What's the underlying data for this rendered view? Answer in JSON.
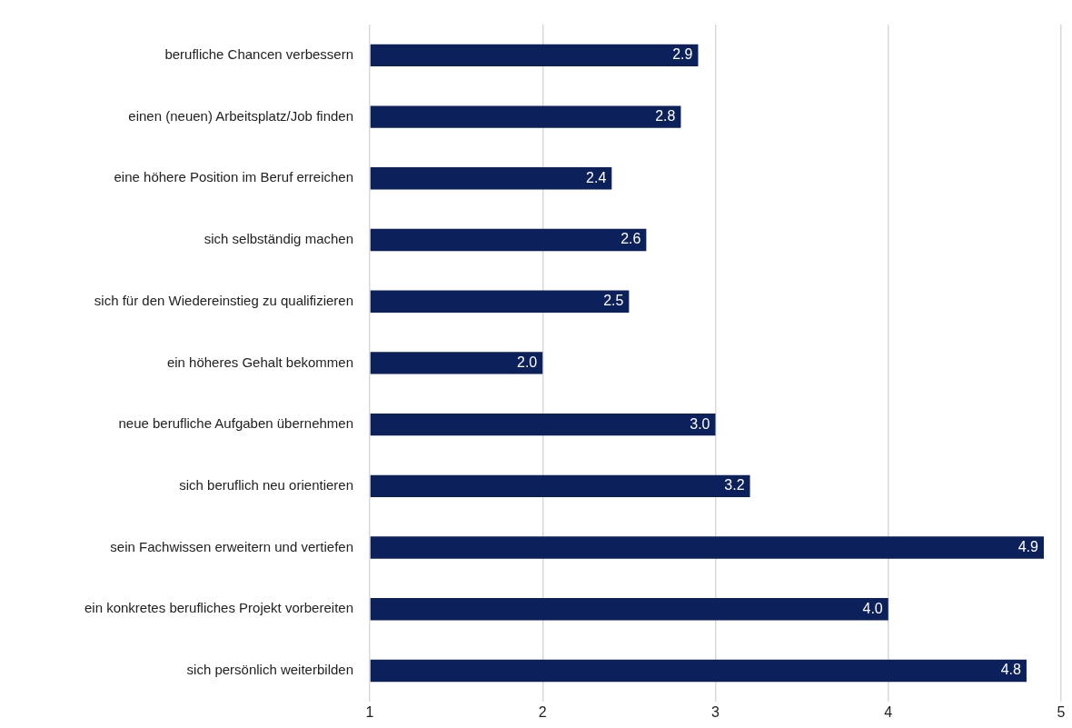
{
  "chart_data": {
    "type": "bar",
    "orientation": "horizontal",
    "categories": [
      "berufliche Chancen verbessern",
      "einen (neuen) Arbeitsplatz/Job finden",
      "eine höhere Position im Beruf erreichen",
      "sich selbständig machen",
      "sich für den Wiedereinstieg zu qualifizieren",
      "ein höheres Gehalt bekommen",
      "neue berufliche Aufgaben übernehmen",
      "sich beruflich neu orientieren",
      "sein Fachwissen erweitern und vertiefen",
      "ein konkretes berufliches Projekt vorbereiten",
      "sich persönlich weiterbilden"
    ],
    "values": [
      2.9,
      2.8,
      2.4,
      2.6,
      2.5,
      2.0,
      3.0,
      3.2,
      4.9,
      4.0,
      4.8
    ],
    "value_labels": [
      "2.9",
      "2.8",
      "2.4",
      "2.6",
      "2.5",
      "2.0",
      "3.0",
      "3.2",
      "4.9",
      "4.0",
      "4.8"
    ],
    "color": "#0c215c",
    "xlim": [
      1,
      5
    ],
    "xticks": [
      1,
      2,
      3,
      4,
      5
    ],
    "grid": "x",
    "legend": false
  }
}
